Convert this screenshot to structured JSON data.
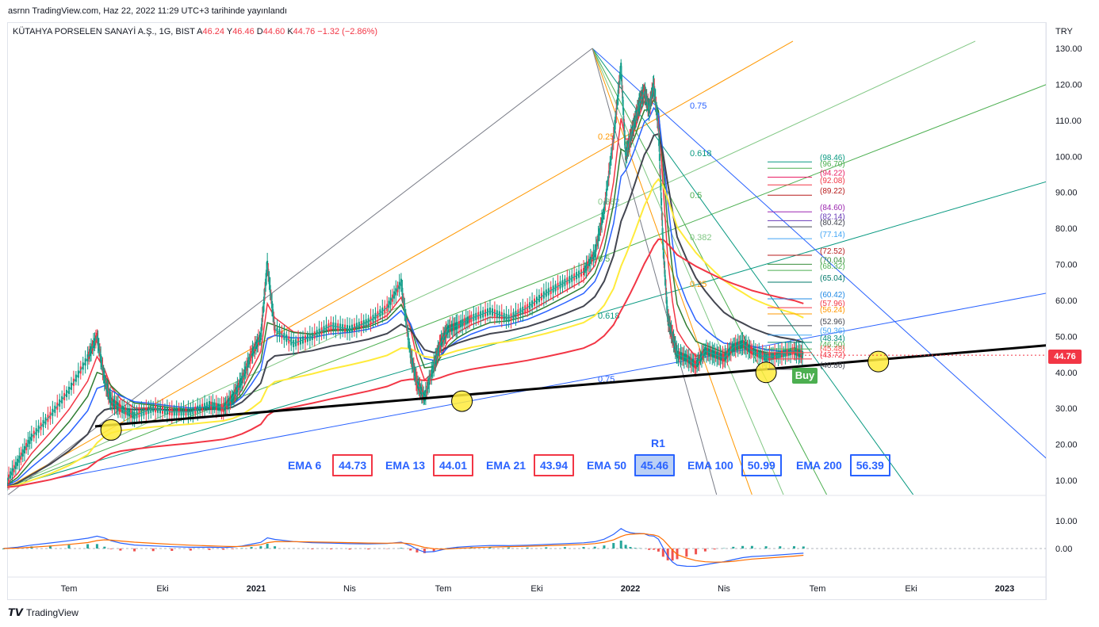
{
  "header": {
    "published": "asrnn TradingView.com, Haz 22, 2022 11:29 UTC+3 tarihinde yayınlandı"
  },
  "legend": {
    "symbol": "KÜTAHYA PORSELEN SANAYİ A.Ş., 1G, BIST",
    "open_label": "A",
    "open": "46.24",
    "high_label": "Y",
    "high": "46.46",
    "low_label": "D",
    "low": "44.60",
    "close_label": "K",
    "close": "44.76",
    "change": "−1.32 (−2.86%)"
  },
  "price_axis": {
    "currency": "TRY",
    "last_price": "44.76"
  },
  "footer": {
    "brand": "TradingView"
  },
  "ema_panel": {
    "r1_label": "R1",
    "items": [
      {
        "label": "EMA 6",
        "value": "44.73",
        "border": "#f23645"
      },
      {
        "label": "EMA 13",
        "value": "44.01",
        "border": "#f23645"
      },
      {
        "label": "EMA 21",
        "value": "43.94",
        "border": "#f23645"
      },
      {
        "label": "EMA 50",
        "value": "45.46",
        "border": "#2962ff"
      },
      {
        "label": "EMA 100",
        "value": "50.99",
        "border": "#2962ff"
      },
      {
        "label": "EMA 200",
        "value": "56.39",
        "border": "#2962ff"
      }
    ]
  },
  "signal": {
    "label": "Buy"
  },
  "chart_data": {
    "type": "line",
    "title": "KÜTAHYA PORSELEN SANAYİ A.Ş., 1G, BIST",
    "xlabel": "",
    "ylabel": "TRY",
    "y_ticks": [
      10,
      20,
      30,
      40,
      50,
      60,
      70,
      80,
      90,
      100,
      110,
      120,
      130
    ],
    "ylim": [
      5,
      135
    ],
    "x_ticks": [
      "Tem",
      "Eki",
      "2021",
      "Nis",
      "Tem",
      "Eki",
      "2022",
      "Nis",
      "Tem",
      "Eki",
      "2023"
    ],
    "x_tick_pos": [
      0,
      1,
      2,
      3,
      4,
      5,
      6,
      7,
      8,
      9,
      10
    ],
    "price_series": {
      "name": "Close",
      "x": [
        -0.7,
        -0.55,
        -0.4,
        -0.2,
        0.0,
        0.2,
        0.3,
        0.38,
        0.45,
        0.55,
        0.7,
        0.9,
        1.1,
        1.3,
        1.5,
        1.65,
        1.75,
        1.85,
        1.95,
        2.05,
        2.12,
        2.2,
        2.4,
        2.6,
        2.8,
        3.0,
        3.2,
        3.4,
        3.55,
        3.65,
        3.72,
        3.8,
        3.9,
        3.97,
        4.05,
        4.15,
        4.3,
        4.5,
        4.7,
        4.9,
        5.1,
        5.3,
        5.5,
        5.62,
        5.72,
        5.82,
        5.9,
        5.95,
        6.0,
        6.05,
        6.1,
        6.15,
        6.2,
        6.25,
        6.3,
        6.35,
        6.4,
        6.45,
        6.5,
        6.6,
        6.7,
        6.8,
        6.9,
        7.0,
        7.1,
        7.2,
        7.3,
        7.45,
        7.6,
        7.75,
        7.85
      ],
      "y": [
        8,
        15,
        22,
        28,
        35,
        44,
        50,
        38,
        32,
        30,
        28,
        30,
        29,
        29,
        31,
        30,
        33,
        38,
        45,
        50,
        70,
        52,
        48,
        50,
        53,
        52,
        54,
        58,
        65,
        45,
        37,
        33,
        42,
        48,
        52,
        53,
        55,
        57,
        55,
        58,
        62,
        65,
        68,
        73,
        85,
        105,
        125,
        100,
        105,
        110,
        115,
        118,
        113,
        120,
        108,
        75,
        55,
        50,
        45,
        44,
        42,
        46,
        45,
        44,
        47,
        48,
        46,
        44,
        45,
        46,
        44.76
      ]
    },
    "ema_series": [
      {
        "name": "EMA 6",
        "value": 44.73,
        "color": "#f23645"
      },
      {
        "name": "EMA 13",
        "value": 44.01,
        "color": "#2e7d32"
      },
      {
        "name": "EMA 21",
        "value": 43.94,
        "color": "#2962ff"
      },
      {
        "name": "EMA 50",
        "value": 45.46,
        "color": "#434651"
      },
      {
        "name": "EMA 100",
        "value": 50.99,
        "color": "#ffeb3b"
      },
      {
        "name": "EMA 200",
        "value": 56.39,
        "color": "#f23645"
      }
    ],
    "fib_fan_labels_upper": [
      "0.75",
      "0.618",
      "0.5",
      "0.382",
      "0.25"
    ],
    "fib_fan_labels_lower": [
      "0.75",
      "0.618",
      "0.5",
      "0.382",
      "0.25"
    ],
    "price_levels": [
      "98.46",
      "96.70",
      "94.22",
      "92.08",
      "89.22",
      "84.60",
      "82.14",
      "80.42",
      "77.14",
      "72.52",
      "70.04",
      "68.32",
      "65.04",
      "60.42",
      "57.96",
      "56.24",
      "52.96",
      "50.36",
      "48.34",
      "46.50",
      "45.48",
      "43.72",
      "40.86"
    ],
    "price_level_colors": [
      "#089981",
      "#4caf50",
      "#e91e63",
      "#f23645",
      "#b71c1c",
      "#9c27b0",
      "#673ab7",
      "#434651",
      "#42a5f5",
      "#b71c1c",
      "#388e3c",
      "#4caf50",
      "#00796b",
      "#1e88e5",
      "#f23645",
      "#ff9800",
      "#434651",
      "#42a5f5",
      "#00897b",
      "#4caf50",
      "#ff5252",
      "#f23645",
      "#434651"
    ],
    "support_points": [
      [
        0.45,
        24
      ],
      [
        4.2,
        32
      ],
      [
        7.45,
        40
      ],
      [
        8.65,
        43
      ]
    ],
    "macd": {
      "y_ticks": [
        "10.00",
        "0.00"
      ],
      "ylim": [
        -8,
        16
      ]
    }
  }
}
